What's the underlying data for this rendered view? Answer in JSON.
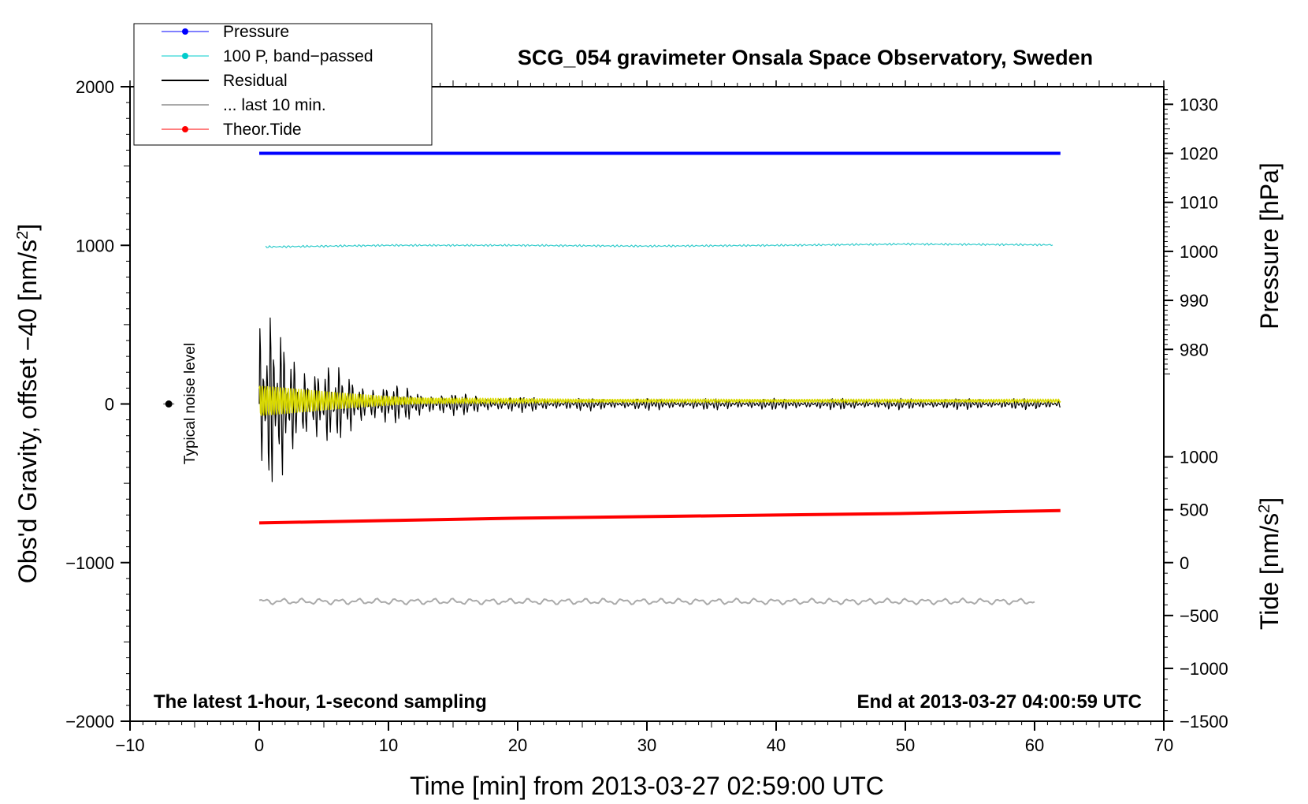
{
  "chart_data": {
    "type": "line",
    "title": "SCG_054 gravimeter Onsala Space Observatory, Sweden",
    "subtitle_left": "The latest 1-hour, 1-second sampling",
    "subtitle_right": "End at 2013-03-27 04:00:59 UTC",
    "xlabel": "Time [min] from 2013-03-27 02:59:00 UTC",
    "ylabel_left_main": "Obs'd Gravity, offset −40 [nm/s",
    "ylabel_left_sup": "2",
    "ylabel_left_close": "]",
    "ylabel_pressure": "Pressure [hPa]",
    "ylabel_tide_main": "Tide [nm/s",
    "ylabel_tide_sup": "2",
    "ylabel_tide_close": "]",
    "noise_label": "Typical noise level",
    "xlim": [
      -10,
      70
    ],
    "ylim": [
      -2000,
      2000
    ],
    "x_ticks": [
      -10,
      0,
      10,
      20,
      30,
      40,
      50,
      60,
      70
    ],
    "x_tick_labels": [
      "−10",
      "0",
      "10",
      "20",
      "30",
      "40",
      "50",
      "60",
      "70"
    ],
    "y_ticks": [
      -2000,
      -1000,
      0,
      1000,
      2000
    ],
    "y_tick_labels": [
      "−2000",
      "−1000",
      "0",
      "1000",
      "2000"
    ],
    "pressure_axis": {
      "ticks": [
        980,
        990,
        1000,
        1010,
        1020,
        1030
      ],
      "tick_labels": [
        "980",
        "990",
        "1000",
        "1010",
        "1020",
        "1030"
      ],
      "left_value_at_1020": 1580,
      "left_units_per_hpa": 30.9
    },
    "tide_axis": {
      "ticks": [
        -1500,
        -1000,
        -500,
        0,
        500,
        1000
      ],
      "tick_labels": [
        "−1500",
        "−1000",
        "−500",
        "0",
        "500",
        "1000"
      ],
      "left_value_at_0": -1000,
      "left_units_per_nms2": 0.6667
    },
    "legend": {
      "position": "top-left",
      "entries": [
        {
          "label": "Pressure",
          "color": "#0000ff",
          "marker": true
        },
        {
          "label": "100 P, band−passed",
          "color": "#00cccc",
          "marker": true
        },
        {
          "label": "Residual",
          "color": "#000000",
          "marker": false
        },
        {
          "label": "... last 10 min.",
          "color": "#aaaaaa",
          "marker": false
        },
        {
          "label": "Theor.Tide",
          "color": "#ff0000",
          "marker": true
        }
      ]
    },
    "series": [
      {
        "key": "pressure",
        "color": "#0000ff",
        "x": [
          0,
          62
        ],
        "y": [
          1580,
          1580
        ]
      },
      {
        "key": "band_passed",
        "color": "#33cccc",
        "x": [
          0.5,
          10,
          20,
          30,
          40,
          50,
          61.5
        ],
        "y": [
          990,
          1000,
          1000,
          995,
          1000,
          1008,
          1003
        ]
      },
      {
        "key": "tide",
        "color": "#ff0000",
        "x": [
          0,
          10,
          20,
          30,
          40,
          50,
          62
        ],
        "y": [
          -750,
          -735,
          -720,
          -710,
          -700,
          -690,
          -672
        ]
      },
      {
        "key": "last10",
        "color": "#aaaaaa",
        "x_range": [
          0,
          60
        ],
        "y_center": -1245,
        "amplitude": 20
      },
      {
        "key": "residual",
        "color": "#000000",
        "x_range": [
          0,
          62
        ],
        "y_center": 0,
        "initial_amplitude": 520,
        "final_amplitude": 30
      },
      {
        "key": "yellow_overlay",
        "color": "#d9d900",
        "x_range": [
          0,
          62
        ],
        "y_center": 20,
        "initial_amplitude": 120,
        "final_amplitude": 10
      }
    ],
    "noise_marker": {
      "x": -7,
      "y": 0
    }
  }
}
